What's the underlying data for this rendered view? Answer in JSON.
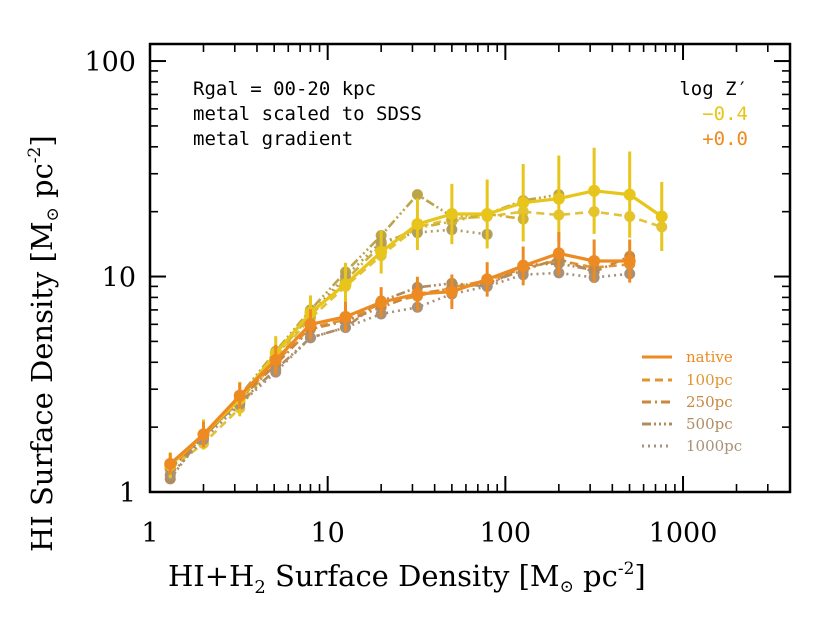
{
  "chart_data": {
    "type": "line",
    "xlabel_main": "HI+H",
    "xlabel_sub": "2",
    "xlabel_tail": " Surface Density [M",
    "xlabel_unit": " pc",
    "xlabel_exp": "-2",
    "ylabel_main": "HI Surface Density [M",
    "ylabel_unit": " pc",
    "ylabel_exp": "-2",
    "xscale": "log",
    "yscale": "log",
    "xlim": [
      1,
      4000
    ],
    "ylim": [
      1,
      120
    ],
    "x_ticks": [
      {
        "value": 1,
        "label": "1"
      },
      {
        "value": 10,
        "label": "10"
      },
      {
        "value": 100,
        "label": "100"
      },
      {
        "value": 1000,
        "label": "1000"
      }
    ],
    "y_ticks": [
      {
        "value": 1,
        "label": "1"
      },
      {
        "value": 10,
        "label": "10"
      },
      {
        "value": 100,
        "label": "100"
      }
    ],
    "annotations": [
      "Rgal = 00-20 kpc",
      "metal scaled to SDSS",
      "metal gradient"
    ],
    "metal_legend": {
      "title": "log Z′",
      "entries": [
        {
          "label": "−0.4",
          "color": "#E8C51A"
        },
        {
          "label": "+0.0",
          "color": "#EE8A22"
        }
      ]
    },
    "style_legend": [
      {
        "label": "native",
        "dash": "",
        "color": "#EE8A22"
      },
      {
        "label": "100pc",
        "dash": "8,5",
        "color": "#E29432"
      },
      {
        "label": "250pc",
        "dash": "9,4,2,4",
        "color": "#C9873F"
      },
      {
        "label": "500pc",
        "dash": "9,3,2,3,2,3,2,3",
        "color": "#B08C60"
      },
      {
        "label": "1000pc",
        "dash": "2,4",
        "color": "#A8917A"
      }
    ],
    "series": [
      {
        "name": "native",
        "metal": "−0.4",
        "color": "#E8C51A",
        "dash": "",
        "width": 3.2,
        "x": [
          1.3,
          2.0,
          3.2,
          5.1,
          8.0,
          12.6,
          20,
          32,
          50,
          79,
          126,
          200,
          316,
          501,
          759
        ],
        "y": [
          1.33,
          1.85,
          2.7,
          4.4,
          6.8,
          9.2,
          13.0,
          17.5,
          19.5,
          19.5,
          22.0,
          23.0,
          25.0,
          24.0,
          19.0
        ],
        "err": [
          0.06,
          0.07,
          0.08,
          0.08,
          0.08,
          0.1,
          0.1,
          0.12,
          0.14,
          0.16,
          0.18,
          0.2,
          0.2,
          0.2,
          0.16
        ]
      },
      {
        "name": "100pc",
        "metal": "−0.4",
        "color": "#E2C237",
        "dash": "8,5",
        "width": 2.6,
        "x": [
          1.3,
          2.0,
          3.2,
          5.1,
          8.0,
          12.6,
          20,
          32,
          50,
          79,
          126,
          200,
          316,
          501,
          759
        ],
        "y": [
          1.28,
          1.68,
          2.45,
          4.2,
          6.4,
          9.0,
          12.5,
          17.0,
          18.5,
          19.0,
          20.0,
          19.3,
          20.0,
          19.0,
          17.0
        ]
      },
      {
        "name": "250pc",
        "metal": "−0.4",
        "color": "#CFB13A",
        "dash": "9,4,2,4",
        "width": 2.6,
        "x": [
          1.3,
          2.0,
          3.2,
          5.1,
          8.0,
          12.6,
          20,
          32,
          50,
          79,
          126
        ],
        "y": [
          1.3,
          1.8,
          2.65,
          4.3,
          6.6,
          9.6,
          14.0,
          16.8,
          18.0,
          19.5,
          18.5
        ]
      },
      {
        "name": "500pc",
        "metal": "−0.4",
        "color": "#BCA548",
        "dash": "9,3,2,3,2,3,2,3",
        "width": 2.6,
        "x": [
          1.3,
          2.0,
          3.2,
          5.1,
          8.0,
          12.6,
          20,
          32,
          50,
          79,
          126,
          200
        ],
        "y": [
          1.32,
          1.85,
          2.8,
          4.5,
          7.0,
          10.5,
          15.5,
          24.0,
          19.0,
          19.5,
          22.5,
          24.0
        ]
      },
      {
        "name": "1000pc",
        "metal": "−0.4",
        "color": "#B29D5C",
        "dash": "2,4",
        "width": 2.6,
        "x": [
          1.3,
          2.0,
          3.2,
          5.1,
          8.0,
          12.6,
          20,
          32,
          50,
          79
        ],
        "y": [
          1.3,
          1.82,
          2.75,
          4.4,
          6.7,
          10.0,
          14.5,
          16.0,
          16.5,
          15.7
        ]
      },
      {
        "name": "native",
        "metal": "+0.0",
        "color": "#EE8A22",
        "dash": "",
        "width": 3.2,
        "x": [
          1.3,
          2.0,
          3.2,
          5.1,
          8.0,
          12.6,
          20,
          32,
          50,
          79,
          126,
          200,
          316,
          501
        ],
        "y": [
          1.35,
          1.85,
          2.8,
          4.1,
          6.0,
          6.5,
          7.6,
          8.3,
          8.5,
          9.7,
          11.2,
          12.8,
          11.8,
          11.8
        ],
        "err": [
          0.05,
          0.06,
          0.06,
          0.07,
          0.07,
          0.07,
          0.07,
          0.08,
          0.08,
          0.08,
          0.09,
          0.1,
          0.1,
          0.1
        ]
      },
      {
        "name": "100pc",
        "metal": "+0.0",
        "color": "#E29432",
        "dash": "8,5",
        "width": 2.6,
        "x": [
          1.3,
          2.0,
          3.2,
          5.1,
          8.0,
          12.6,
          20,
          32,
          50,
          79,
          126,
          200,
          316,
          501
        ],
        "y": [
          1.3,
          1.8,
          2.7,
          4.0,
          5.8,
          6.3,
          7.5,
          8.1,
          8.9,
          9.6,
          10.9,
          11.9,
          11.0,
          11.4
        ]
      },
      {
        "name": "250pc",
        "metal": "+0.0",
        "color": "#C9873F",
        "dash": "9,4,2,4",
        "width": 2.6,
        "x": [
          1.3,
          2.0,
          3.2,
          5.1,
          8.0,
          12.6,
          20,
          32,
          50,
          79,
          126,
          200,
          316,
          501
        ],
        "y": [
          1.28,
          1.8,
          2.7,
          3.9,
          5.7,
          6.2,
          7.2,
          8.3,
          8.8,
          9.3,
          10.7,
          12.1,
          10.5,
          12.4
        ]
      },
      {
        "name": "500pc",
        "metal": "+0.0",
        "color": "#B08C60",
        "dash": "9,3,2,3,2,3,2,3",
        "width": 2.6,
        "x": [
          1.3,
          2.0,
          3.2,
          5.1,
          8.0,
          12.6,
          20,
          32,
          50,
          79,
          126,
          200,
          316
        ],
        "y": [
          1.15,
          1.85,
          2.6,
          3.7,
          5.2,
          5.8,
          7.7,
          8.9,
          9.3,
          9.0,
          11.3,
          11.5,
          10.7
        ]
      },
      {
        "name": "1000pc",
        "metal": "+0.0",
        "color": "#A8917A",
        "dash": "2,4",
        "width": 2.6,
        "x": [
          1.3,
          2.0,
          3.2,
          5.1,
          8.0,
          12.6,
          20,
          32,
          50,
          79,
          126,
          200,
          316,
          501
        ],
        "y": [
          1.2,
          1.75,
          2.55,
          3.6,
          5.2,
          5.8,
          6.7,
          7.2,
          8.3,
          9.0,
          10.2,
          10.4,
          9.9,
          10.3
        ]
      }
    ]
  }
}
